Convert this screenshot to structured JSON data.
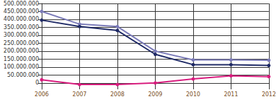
{
  "chart_data": {
    "type": "line",
    "categories": [
      "2006",
      "2007",
      "2008",
      "2009",
      "2010",
      "2011",
      "2012"
    ],
    "series": [
      {
        "color": "#7b7bb8",
        "values": [
          450000000,
          370000000,
          355000000,
          200000000,
          145000000,
          145000000,
          143000000
        ]
      },
      {
        "color": "#1f2a66",
        "values": [
          395000000,
          355000000,
          330000000,
          180000000,
          115000000,
          115000000,
          110000000
        ]
      },
      {
        "color": "#d81b7d",
        "values": [
          20000000,
          -10000000,
          -10000000,
          0,
          25000000,
          45000000,
          40000000
        ]
      }
    ],
    "ylim": [
      -40000000,
      500000000
    ],
    "yticks": [
      0,
      {
        "value": 50000000,
        "label": "50.000.000"
      },
      {
        "value": 100000000,
        "label": "100.000.000"
      },
      {
        "value": 150000000,
        "label": "150.000.000"
      },
      {
        "value": 200000000,
        "label": "200.000.000"
      },
      {
        "value": 250000000,
        "label": "250.000.000"
      },
      {
        "value": 300000000,
        "label": "300.000.000"
      },
      {
        "value": 350000000,
        "label": "350.000.000"
      },
      {
        "value": 400000000,
        "label": "400.000.000"
      },
      {
        "value": 450000000,
        "label": "450.000.000"
      },
      {
        "value": 500000000,
        "label": "500.000.000"
      }
    ],
    "grid": true,
    "marker": "circle"
  }
}
